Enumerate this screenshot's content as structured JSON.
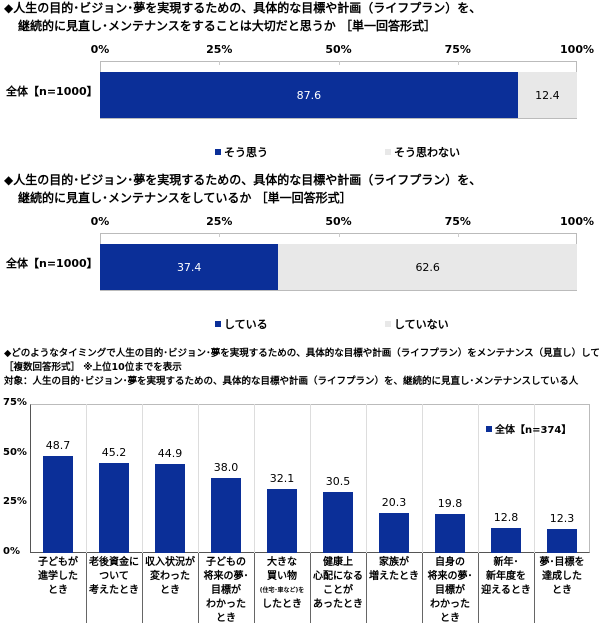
{
  "colors": {
    "blue": "#0B2F98",
    "gray": "#E8E8E8"
  },
  "chart_data": [
    {
      "type": "bar",
      "orientation": "horizontal-stacked",
      "title_lines": [
        "◆人生の目的･ビジョン･夢を実現するための、具体的な目標や計画（ライフプラン）を、",
        "継続的に見直し･メンテナンスをすることは大切だと思うか ［単一回答形式］"
      ],
      "xticks": [
        "0%",
        "25%",
        "50%",
        "75%",
        "100%"
      ],
      "xlim": [
        0,
        100
      ],
      "categories": [
        "全体【n=1000】"
      ],
      "series": [
        {
          "name": "そう思う",
          "values": [
            87.6
          ]
        },
        {
          "name": "そう思わない",
          "values": [
            12.4
          ]
        }
      ],
      "legend": "bottom"
    },
    {
      "type": "bar",
      "orientation": "horizontal-stacked",
      "title_lines": [
        "◆人生の目的･ビジョン･夢を実現するための、具体的な目標や計画（ライフプラン）を、",
        "継続的に見直し･メンテナンスをしているか ［単一回答形式］"
      ],
      "xticks": [
        "0%",
        "25%",
        "50%",
        "75%",
        "100%"
      ],
      "xlim": [
        0,
        100
      ],
      "categories": [
        "全体【n=1000】"
      ],
      "series": [
        {
          "name": "している",
          "values": [
            37.4
          ]
        },
        {
          "name": "していない",
          "values": [
            62.6
          ]
        }
      ],
      "legend": "bottom"
    },
    {
      "type": "bar",
      "title_lines": [
        "◆どのようなタイミングで人生の目的･ビジョン･夢を実現するための、具体的な目標や計画（ライフプラン）をメンテナンス（見直し）しているか",
        "［複数回答形式］ ※上位10位までを表示",
        "対象：人生の目的･ビジョン･夢を実現するための、具体的な目標や計画（ライフプラン）を、継続的に見直し･メンテナンスしている人"
      ],
      "yticks": [
        "0%",
        "25%",
        "50%",
        "75%"
      ],
      "ylim": [
        0,
        75
      ],
      "categories": [
        [
          "子どもが",
          "進学した",
          "とき"
        ],
        [
          "老後資金に",
          "ついて",
          "考えたとき"
        ],
        [
          "収入状況が",
          "変わった",
          "とき"
        ],
        [
          "子どもの",
          "将来の夢･",
          "目標が",
          "わかった",
          "とき"
        ],
        [
          "大きな",
          "買い物",
          "(住宅･車など)を",
          "したとき"
        ],
        [
          "健康上",
          "心配になる",
          "ことが",
          "あったとき"
        ],
        [
          "家族が",
          "増えたとき"
        ],
        [
          "自身の",
          "将来の夢･",
          "目標が",
          "わかった",
          "とき"
        ],
        [
          "新年･",
          "新年度を",
          "迎えるとき"
        ],
        [
          "夢･目標を",
          "達成した",
          "とき"
        ]
      ],
      "series": [
        {
          "name": "全体【n=374】",
          "values": [
            48.7,
            45.2,
            44.9,
            38.0,
            32.1,
            30.5,
            20.3,
            19.8,
            12.8,
            12.3
          ]
        }
      ],
      "value_labels": [
        "48.7",
        "45.2",
        "44.9",
        "38.0",
        "32.1",
        "30.5",
        "20.3",
        "19.8",
        "12.8",
        "12.3"
      ],
      "legend": "top-right"
    }
  ]
}
